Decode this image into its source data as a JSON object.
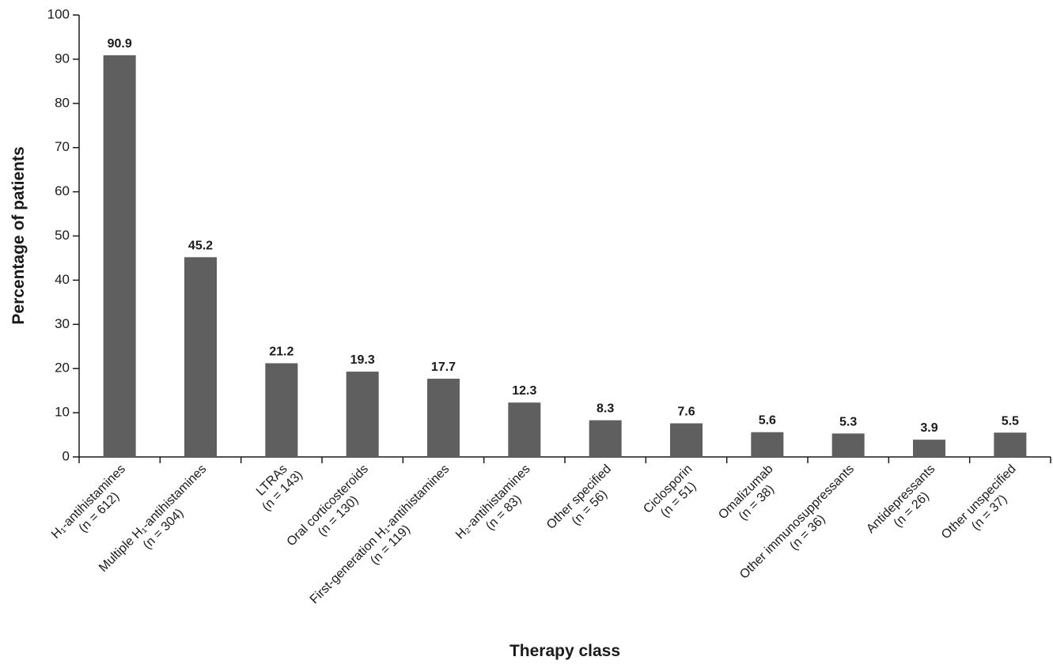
{
  "chart_data": {
    "type": "bar",
    "xlabel": "Therapy class",
    "ylabel": "Percentage of patients",
    "categories": [
      [
        "H₁-antihistamines",
        "(n = 612)"
      ],
      [
        "Multiple H₁-antihistamines",
        "(n = 304)"
      ],
      [
        "LTRAs",
        "(n = 143)"
      ],
      [
        "Oral corticosteroids",
        "(n = 130)"
      ],
      [
        "First-generation H₁-antihistamines",
        "(n = 119)"
      ],
      [
        "H₂-antihistamines",
        "(n = 83)"
      ],
      [
        "Other specified",
        "(n = 56)"
      ],
      [
        "Ciclosporin",
        "(n = 51)"
      ],
      [
        "Omalizumab",
        "(n = 38)"
      ],
      [
        "Other immunosuppressants",
        "(n = 36)"
      ],
      [
        "Antidepressants",
        "(n = 26)"
      ],
      [
        "Other unspecified",
        "(n = 37)"
      ]
    ],
    "values": [
      90.9,
      45.2,
      21.2,
      19.3,
      17.7,
      12.3,
      8.3,
      7.6,
      5.6,
      5.3,
      3.9,
      5.5
    ],
    "color": "#5f5f5f",
    "ylim": [
      0,
      100
    ],
    "yticks": [
      0,
      10,
      20,
      30,
      40,
      50,
      60,
      70,
      80,
      90,
      100
    ],
    "grid": false
  }
}
